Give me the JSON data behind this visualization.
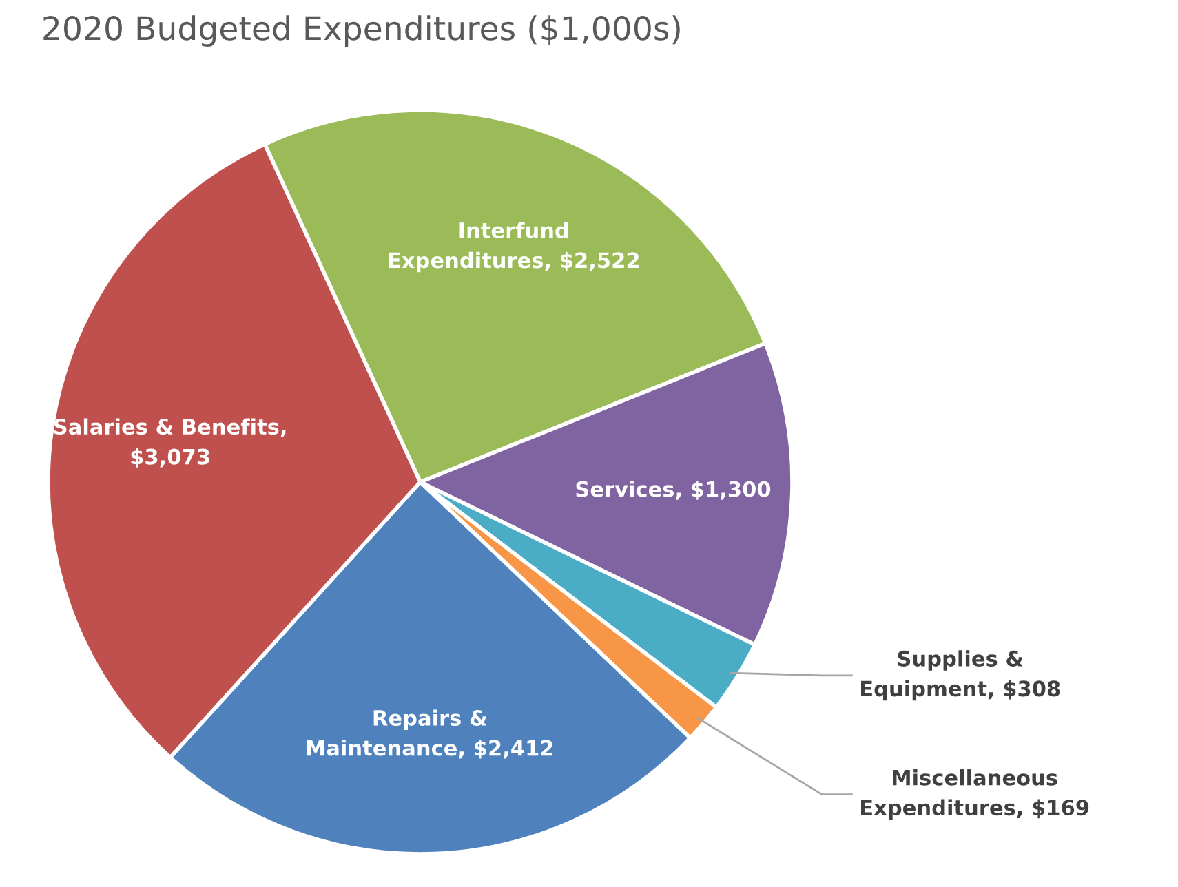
{
  "chart_data": {
    "type": "pie",
    "title": "2020 Budgeted Expenditures ($1,000s)",
    "categories": [
      "Interfund\nExpenditures, $2,522",
      "Services, $1,300",
      "Supplies &\nEquipment, $308",
      "Miscellaneous\nExpenditures, $169",
      "Repairs &\nMaintenance, $2,412",
      "Salaries & Benefits,\n$3,073"
    ],
    "values": [
      2522,
      1300,
      308,
      169,
      2412,
      3073
    ],
    "colors": [
      "#9bbb59",
      "#8064a2",
      "#4bacc6",
      "#f79646",
      "#4f81bd",
      "#c0504d"
    ],
    "legend": false
  }
}
